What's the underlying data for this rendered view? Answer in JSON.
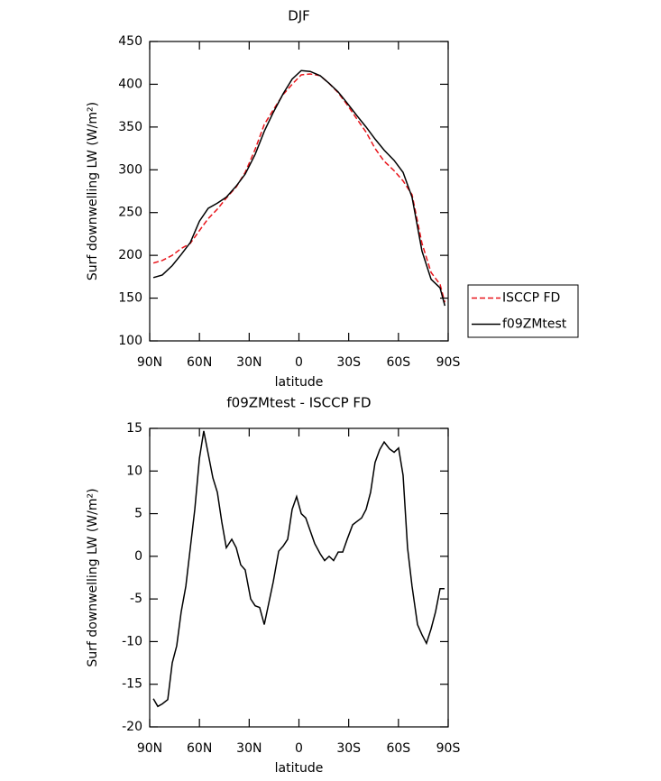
{
  "chart_data": [
    {
      "type": "line",
      "title": "DJF",
      "xlabel": "latitude",
      "ylabel": "Surf downwelling LW (W/m²)",
      "x": [
        87.8,
        82.4,
        76.4,
        71,
        65.5,
        60,
        54.7,
        49.2,
        43.8,
        37.8,
        32.4,
        26.4,
        20.9,
        15.5,
        9.5,
        4.1,
        -1.4,
        -6.8,
        -12.8,
        -18.2,
        -23.7,
        -29.1,
        -35.1,
        -40.5,
        -45.9,
        -51.4,
        -57.4,
        -62.8,
        -68.2,
        -74.2,
        -79.7,
        -85.1,
        -88
      ],
      "series": [
        {
          "name": "ISCCP FD",
          "color": "#e8141a",
          "dash": true,
          "values": [
            191,
            194,
            200,
            208,
            214,
            229,
            243,
            254,
            267,
            280,
            297,
            324,
            353,
            370,
            388,
            400,
            411,
            412,
            410,
            401,
            390,
            376,
            359,
            344,
            325,
            310,
            299,
            287,
            271,
            214,
            180,
            166,
            145
          ]
        },
        {
          "name": "f09ZMtest",
          "color": "#000000",
          "dash": false,
          "values": [
            174,
            177,
            188,
            201,
            215,
            240,
            255,
            261,
            268,
            281,
            295,
            318,
            345,
            367,
            389,
            406,
            416,
            415,
            410,
            401,
            391,
            378,
            363,
            350,
            336,
            323,
            311,
            297,
            268,
            205,
            172,
            162,
            141
          ]
        }
      ],
      "xlim": [
        90,
        -90
      ],
      "xticks": [
        {
          "value": 90,
          "label": "90N"
        },
        {
          "value": 60,
          "label": "60N"
        },
        {
          "value": 30,
          "label": "30N"
        },
        0,
        {
          "value": -30,
          "label": "30S"
        },
        {
          "value": -60,
          "label": "60S"
        },
        {
          "value": -90,
          "label": "90S"
        }
      ],
      "ylim": [
        100,
        450
      ],
      "yticks": [
        100,
        150,
        200,
        250,
        300,
        350,
        400,
        450
      ],
      "legend": "right"
    },
    {
      "type": "line",
      "title": "f09ZMtest - ISCCP FD",
      "xlabel": "latitude",
      "ylabel": "Surf downwelling LW (W/m²)",
      "x": [
        87.8,
        85.1,
        82.4,
        79.1,
        76.4,
        73.7,
        71,
        68.2,
        65.5,
        62.8,
        60,
        57.4,
        54.7,
        51.9,
        49.2,
        46.5,
        43.8,
        40.5,
        37.8,
        35.1,
        32.4,
        29.1,
        26.4,
        23.7,
        20.9,
        18.2,
        15.5,
        12.2,
        9.5,
        6.8,
        4.1,
        1.4,
        -1.4,
        -4.1,
        -6.8,
        -9.5,
        -12.8,
        -15.5,
        -18.2,
        -20.9,
        -23.7,
        -26.4,
        -29.1,
        -32.4,
        -35.1,
        -37.8,
        -40.5,
        -43.2,
        -45.9,
        -48.7,
        -51.4,
        -54.6,
        -57.4,
        -60.1,
        -62.8,
        -65.5,
        -68.2,
        -71.5,
        -74.2,
        -76.9,
        -79.7,
        -82.4,
        -85.1,
        -87.8
      ],
      "series": [
        {
          "name": "f09ZMtest - ISCCP FD",
          "color": "#000000",
          "dash": false,
          "values": [
            -16.7,
            -17.6,
            -17.3,
            -16.8,
            -12.5,
            -10.5,
            -6.5,
            -3.5,
            1,
            5.5,
            11.5,
            14.7,
            12,
            9.2,
            7.5,
            4,
            1,
            2,
            1,
            -1,
            -1.6,
            -5,
            -5.8,
            -6,
            -8,
            -5.5,
            -3,
            0.6,
            1.2,
            2,
            5.5,
            7,
            5,
            4.5,
            3,
            1.5,
            0.3,
            -0.5,
            0,
            -0.5,
            0.5,
            0.5,
            2,
            3.7,
            4.1,
            4.5,
            5.5,
            7.5,
            11,
            12.5,
            13.4,
            12.6,
            12.2,
            12.7,
            9.5,
            1,
            -3.5,
            -8,
            -9.2,
            -10.2,
            -8.5,
            -6.5,
            -3.8,
            -3.8
          ]
        }
      ],
      "xlim": [
        90,
        -90
      ],
      "xticks": [
        {
          "value": 90,
          "label": "90N"
        },
        {
          "value": 60,
          "label": "60N"
        },
        {
          "value": 30,
          "label": "30N"
        },
        0,
        {
          "value": -30,
          "label": "30S"
        },
        {
          "value": -60,
          "label": "60S"
        },
        {
          "value": -90,
          "label": "90S"
        }
      ],
      "ylim": [
        -20,
        15
      ],
      "yticks": [
        -20,
        -15,
        -10,
        -5,
        0,
        5,
        10,
        15
      ]
    }
  ]
}
